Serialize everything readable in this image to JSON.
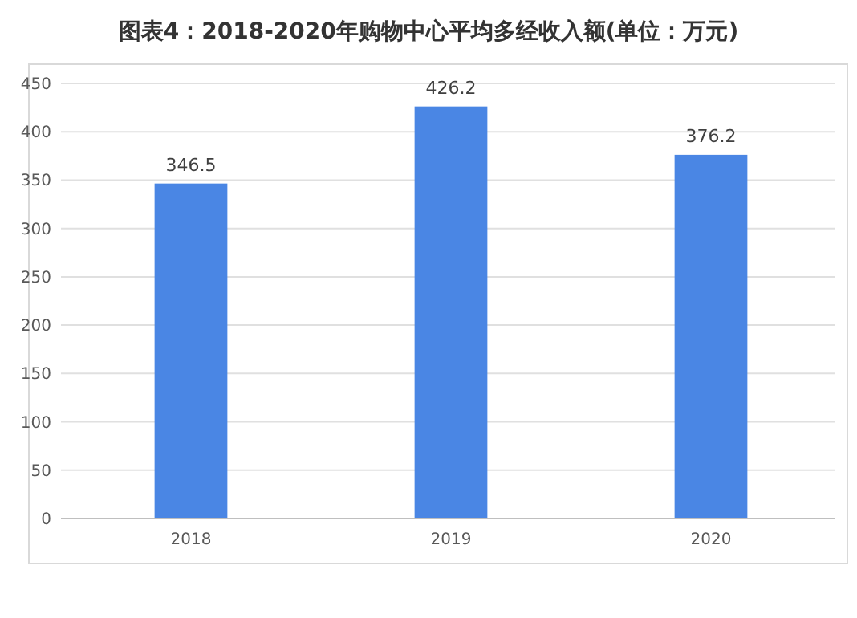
{
  "chart_data": {
    "type": "bar",
    "title": "图表4：2018-2020年购物中心平均多经收入额(单位：万元)",
    "categories": [
      "2018",
      "2019",
      "2020"
    ],
    "values": [
      346.5,
      426.2,
      376.2
    ],
    "color": "#4a86e4",
    "ylim": [
      0,
      450
    ],
    "yticks": [
      0,
      50,
      100,
      150,
      200,
      250,
      300,
      350,
      400,
      450
    ],
    "grid": "y",
    "data_labels": true
  }
}
